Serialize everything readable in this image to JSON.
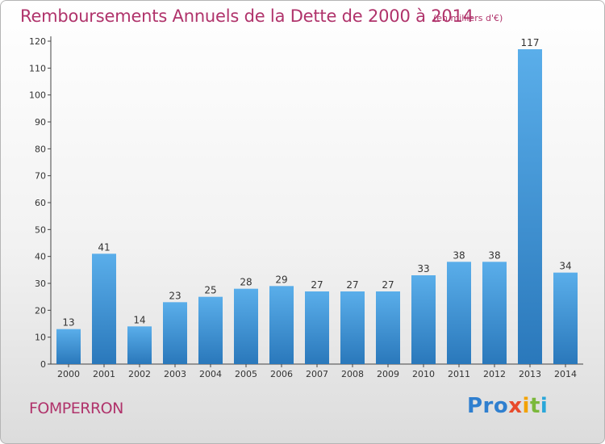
{
  "header": {
    "title": "Remboursements Annuels de la Dette de 2000 à 2014",
    "subtitle": "(en milliers d'€)"
  },
  "footer": {
    "commune": "FOMPERRON",
    "logo": [
      "Pro",
      "x",
      "i",
      "t",
      "i"
    ]
  },
  "colors": {
    "accent": "#b0336b",
    "bar_light": "#5aaeea",
    "bar_dark": "#2a78bb"
  },
  "chart_data": {
    "type": "bar",
    "title": "Remboursements Annuels de la Dette de 2000 à 2014",
    "subtitle": "(en milliers d'€)",
    "xlabel": "",
    "ylabel": "",
    "ylim": [
      0,
      120
    ],
    "yticks": [
      0,
      10,
      20,
      30,
      40,
      50,
      60,
      70,
      80,
      90,
      100,
      110,
      120
    ],
    "grid": false,
    "categories": [
      "2000",
      "2001",
      "2002",
      "2003",
      "2004",
      "2005",
      "2006",
      "2007",
      "2008",
      "2009",
      "2010",
      "2011",
      "2012",
      "2013",
      "2014"
    ],
    "values": [
      13,
      41,
      14,
      23,
      25,
      28,
      29,
      27,
      27,
      27,
      33,
      38,
      38,
      117,
      34
    ],
    "data_labels": [
      "13",
      "41",
      "14",
      "23",
      "25",
      "28",
      "29",
      "27",
      "27",
      "27",
      "33",
      "38",
      "38",
      "117",
      "34"
    ]
  }
}
